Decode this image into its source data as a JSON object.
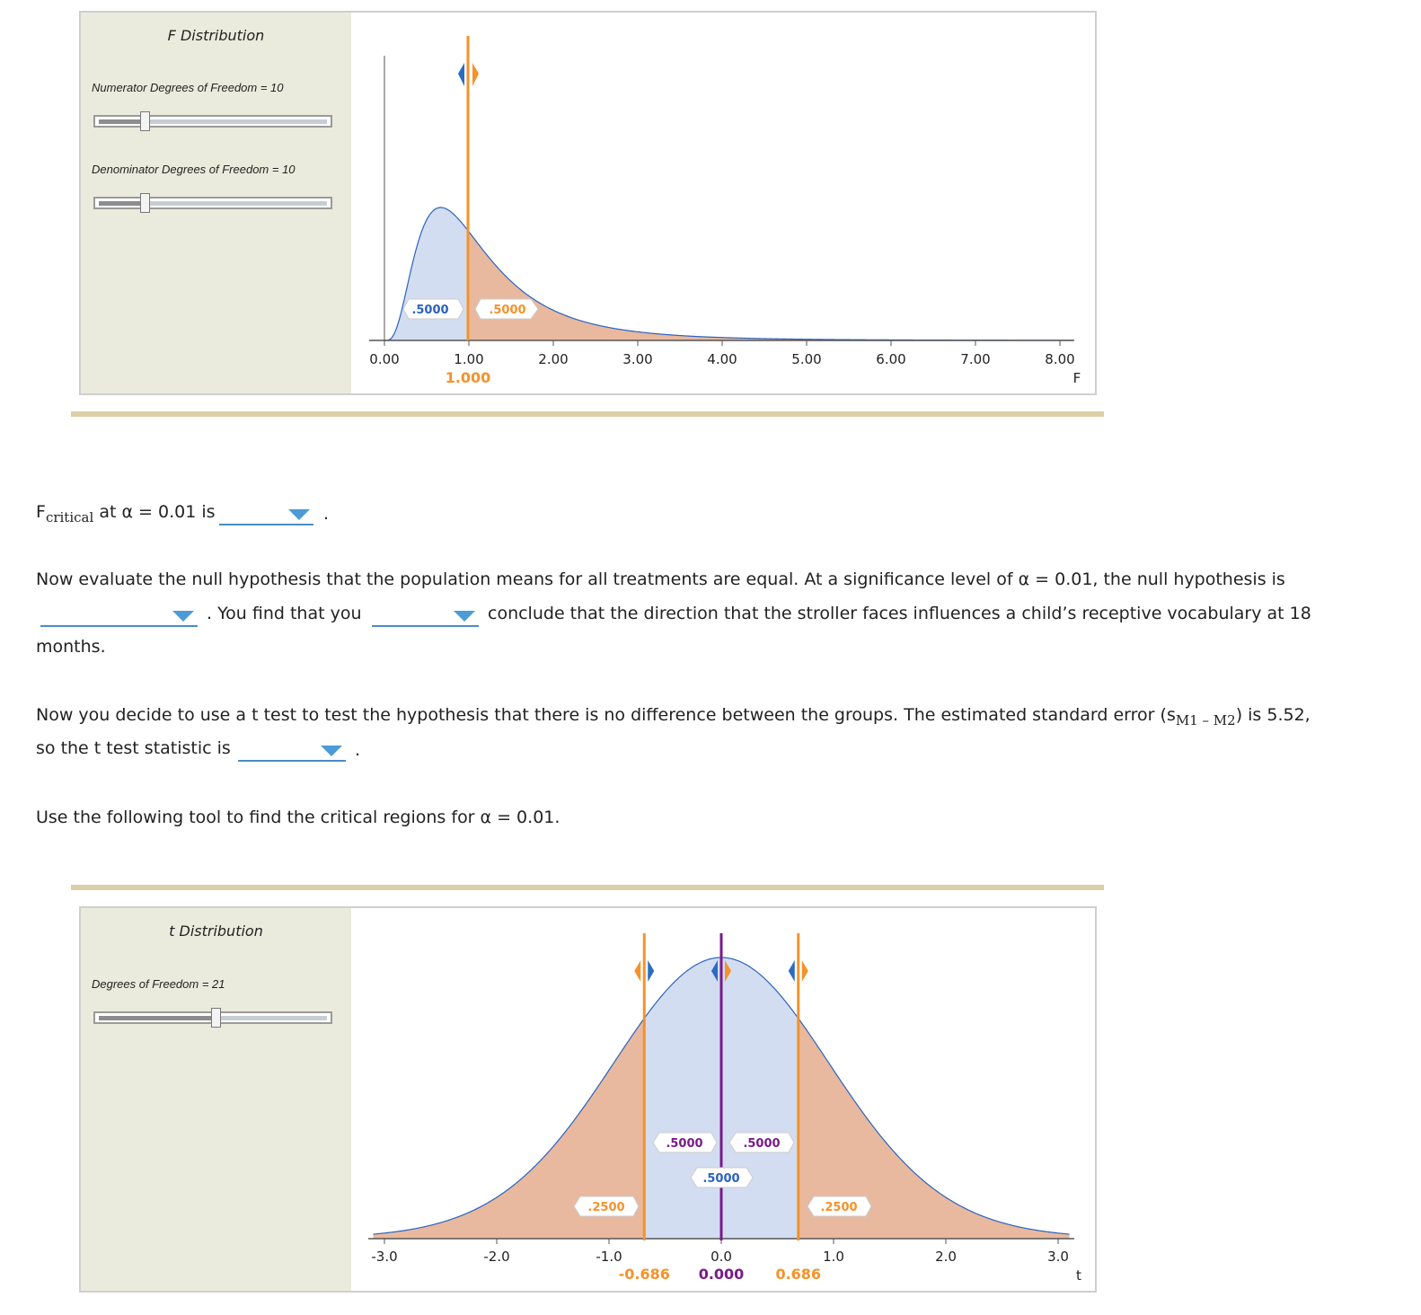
{
  "f_panel": {
    "title": "F Distribution",
    "numerator_label": "Numerator Degrees of Freedom = 10",
    "denominator_label": "Denominator Degrees of Freedom = 10",
    "numerator_slider_value": 0.2,
    "denominator_slider_value": 0.2,
    "tick_labels": [
      "0.00",
      "1.00",
      "2.00",
      "3.00",
      "4.00",
      "5.00",
      "6.00",
      "7.00",
      "8.00"
    ],
    "axis_var": "F",
    "marker_value": "1.000",
    "left_area": ".5000",
    "right_area": ".5000"
  },
  "q1": {
    "prefix_main": "F",
    "prefix_sub": "critical",
    "text": "at α = 0.01 is",
    "suffix": "."
  },
  "q2": {
    "line1": "Now evaluate the null hypothesis that the population means for all treatments are equal. At a significance level of α = 0.01, the null hypothesis is",
    "mid1": ". You find that you",
    "mid2": "conclude that the direction that the stroller faces influences a child’s receptive vocabulary at 18",
    "line3": "months."
  },
  "q3": {
    "line1_a": "Now you decide to use a t test to test the hypothesis that there is no difference between the groups. The estimated standard error (s",
    "sub": "M1 – M2",
    "line1_b": ") is 5.52,",
    "line2": "so the t test statistic is",
    "suffix": "."
  },
  "q4": {
    "text": "Use the following tool to find the critical regions for α = 0.01."
  },
  "t_panel": {
    "title": "t Distribution",
    "df_label": "Degrees of Freedom = 21",
    "slider_value": 0.5,
    "tick_labels": [
      "-3.0",
      "-2.0",
      "-1.0",
      "0.0",
      "1.0",
      "2.0",
      "3.0"
    ],
    "axis_var": "t",
    "left_marker": "-0.686",
    "center_marker": "0.000",
    "right_marker": "0.686",
    "area_center_left": ".5000",
    "area_center_right": ".5000",
    "area_middle": ".5000",
    "area_left_tail": ".2500",
    "area_right_tail": ".2500"
  },
  "colors": {
    "orange": "#f5922a",
    "blue": "#2a6cc4",
    "purple": "#7a1a8a",
    "blue_fill": "#d3ddf1",
    "orange_fill": "#e8b99e"
  }
}
